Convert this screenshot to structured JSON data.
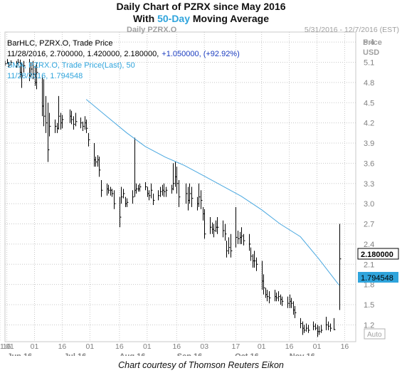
{
  "header": {
    "line1": "Daily Chart of PZRX since May 2016",
    "line2_prefix": "With ",
    "line2_accent": "50-Day",
    "line2_suffix": " Moving Average"
  },
  "chart_header": {
    "symbol_label": "Daily PZRX.O",
    "date_range": "5/31/2016 - 12/7/2016 (EST)",
    "axis_title_1": "Price",
    "axis_title_2": "USD"
  },
  "legend": {
    "line1": "BarHLC, PZRX.O, Trade Price",
    "line2_values": "11/28/2016, 2.700000, 1.420000, 2.180000,",
    "line2_change": "+1.050000, (+92.92%)",
    "line3": "SMA, PZRX.O, Trade Price(Last),  50",
    "line4": "11/28/2016, 1.794548"
  },
  "price_tag": "2.180000",
  "sma_tag": "1.794548",
  "auto_label": "Auto",
  "caption": "Chart courtesy of Thomson Reuters Eikon",
  "colors": {
    "accent": "#2fa4dc",
    "sma_line": "#4aa8e0",
    "bars": "#000000",
    "grid": "#c8c8c8",
    "axis_text": "#808080"
  },
  "chart_data": {
    "type": "line",
    "y_axis": {
      "ticks": [
        1.2,
        1.5,
        1.8,
        2.1,
        2.4,
        2.7,
        3,
        3.3,
        3.6,
        3.9,
        4.2,
        4.5,
        4.8,
        5.1,
        5.4
      ],
      "ylim": [
        0.95,
        5.55
      ],
      "position": "right"
    },
    "x_axis": {
      "day_ticks": [
        "01",
        "16",
        "01",
        "16",
        "01",
        "16",
        "01",
        "16",
        "03",
        "17",
        "01",
        "16",
        "01",
        "16",
        "01"
      ],
      "month_labels": [
        "Jun 16",
        "Jul 16",
        "Aug 16",
        "Sep 16",
        "Oct 16",
        "Nov 16"
      ],
      "start": "2016-05-31",
      "end": "2016-12-07"
    },
    "grid": true,
    "series": [
      {
        "kind": "ohlc",
        "bars": [
          {
            "date": "2016-05-31",
            "h": 5.12,
            "l": 5.05,
            "c": 5.08
          },
          {
            "date": "2016-06-01",
            "h": 5.15,
            "l": 5.08,
            "c": 5.1
          },
          {
            "date": "2016-06-02",
            "h": 5.1,
            "l": 5.02,
            "c": 5.06
          },
          {
            "date": "2016-06-03",
            "h": 5.13,
            "l": 5.05,
            "c": 5.1
          },
          {
            "date": "2016-06-06",
            "h": 5.12,
            "l": 5.02,
            "c": 5.08
          },
          {
            "date": "2016-06-07",
            "h": 5.15,
            "l": 5.05,
            "c": 5.1
          },
          {
            "date": "2016-06-08",
            "h": 5.14,
            "l": 4.88,
            "c": 4.95
          },
          {
            "date": "2016-06-09",
            "h": 5.1,
            "l": 4.72,
            "c": 4.9
          },
          {
            "date": "2016-06-10",
            "h": 5.12,
            "l": 4.95,
            "c": 5.05
          },
          {
            "date": "2016-06-13",
            "h": 5.15,
            "l": 4.82,
            "c": 4.9
          },
          {
            "date": "2016-06-14",
            "h": 5.1,
            "l": 4.88,
            "c": 5.0
          },
          {
            "date": "2016-06-15",
            "h": 5.12,
            "l": 4.85,
            "c": 4.92
          },
          {
            "date": "2016-06-16",
            "h": 5.05,
            "l": 4.75,
            "c": 4.8
          },
          {
            "date": "2016-06-17",
            "h": 5.1,
            "l": 4.7,
            "c": 4.95
          },
          {
            "date": "2016-06-20",
            "h": 4.9,
            "l": 4.3,
            "c": 4.45
          },
          {
            "date": "2016-06-21",
            "h": 4.85,
            "l": 4.15,
            "c": 4.3
          },
          {
            "date": "2016-06-22",
            "h": 4.6,
            "l": 4.05,
            "c": 4.2
          },
          {
            "date": "2016-06-23",
            "h": 4.5,
            "l": 3.62,
            "c": 3.8
          },
          {
            "date": "2016-06-24",
            "h": 4.35,
            "l": 4.0,
            "c": 4.15
          },
          {
            "date": "2016-06-27",
            "h": 4.25,
            "l": 4.05,
            "c": 4.15
          },
          {
            "date": "2016-06-28",
            "h": 4.2,
            "l": 4.05,
            "c": 4.12
          },
          {
            "date": "2016-06-29",
            "h": 4.6,
            "l": 4.1,
            "c": 4.3
          },
          {
            "date": "2016-06-30",
            "h": 4.35,
            "l": 4.1,
            "c": 4.2
          },
          {
            "date": "2016-07-01",
            "h": 4.32,
            "l": 4.12,
            "c": 4.25
          },
          {
            "date": "2016-07-05",
            "h": 4.4,
            "l": 4.2,
            "c": 4.3
          },
          {
            "date": "2016-07-06",
            "h": 4.38,
            "l": 4.18,
            "c": 4.25
          },
          {
            "date": "2016-07-07",
            "h": 4.3,
            "l": 4.1,
            "c": 4.18
          },
          {
            "date": "2016-07-08",
            "h": 4.35,
            "l": 4.15,
            "c": 4.22
          },
          {
            "date": "2016-07-11",
            "h": 4.28,
            "l": 4.12,
            "c": 4.2
          },
          {
            "date": "2016-07-12",
            "h": 4.22,
            "l": 4.08,
            "c": 4.15
          },
          {
            "date": "2016-07-13",
            "h": 4.3,
            "l": 4.1,
            "c": 4.2
          },
          {
            "date": "2016-07-14",
            "h": 4.25,
            "l": 4.05,
            "c": 4.12
          },
          {
            "date": "2016-07-15",
            "h": 4.05,
            "l": 3.85,
            "c": 3.95
          },
          {
            "date": "2016-07-18",
            "h": 3.9,
            "l": 3.55,
            "c": 3.65
          },
          {
            "date": "2016-07-19",
            "h": 3.7,
            "l": 3.55,
            "c": 3.62
          },
          {
            "date": "2016-07-20",
            "h": 3.72,
            "l": 3.55,
            "c": 3.65
          },
          {
            "date": "2016-07-21",
            "h": 3.7,
            "l": 3.4,
            "c": 3.5
          },
          {
            "date": "2016-07-22",
            "h": 3.35,
            "l": 3.1,
            "c": 3.2
          },
          {
            "date": "2016-07-25",
            "h": 3.3,
            "l": 3.12,
            "c": 3.22
          },
          {
            "date": "2016-07-26",
            "h": 3.28,
            "l": 3.15,
            "c": 3.2
          },
          {
            "date": "2016-07-27",
            "h": 3.25,
            "l": 3.12,
            "c": 3.2
          },
          {
            "date": "2016-07-28",
            "h": 3.22,
            "l": 3.1,
            "c": 3.15
          },
          {
            "date": "2016-07-29",
            "h": 3.2,
            "l": 2.92,
            "c": 3.0
          },
          {
            "date": "2016-08-01",
            "h": 3.1,
            "l": 2.65,
            "c": 2.8
          },
          {
            "date": "2016-08-02",
            "h": 3.25,
            "l": 3.0,
            "c": 3.1
          },
          {
            "date": "2016-08-03",
            "h": 3.22,
            "l": 3.08,
            "c": 3.15
          },
          {
            "date": "2016-08-04",
            "h": 3.1,
            "l": 2.95,
            "c": 3.0
          },
          {
            "date": "2016-08-05",
            "h": 3.08,
            "l": 2.95,
            "c": 3.02
          },
          {
            "date": "2016-08-08",
            "h": 3.2,
            "l": 3.0,
            "c": 3.1
          },
          {
            "date": "2016-08-09",
            "h": 3.98,
            "l": 3.1,
            "c": 3.2
          },
          {
            "date": "2016-08-10",
            "h": 3.3,
            "l": 3.15,
            "c": 3.22
          },
          {
            "date": "2016-08-11",
            "h": 3.28,
            "l": 3.18,
            "c": 3.22
          },
          {
            "date": "2016-08-12",
            "h": 3.3,
            "l": 3.18,
            "c": 3.25
          },
          {
            "date": "2016-08-15",
            "h": 3.32,
            "l": 3.2,
            "c": 3.25
          },
          {
            "date": "2016-08-16",
            "h": 3.25,
            "l": 3.1,
            "c": 3.15
          },
          {
            "date": "2016-08-17",
            "h": 3.2,
            "l": 3.05,
            "c": 3.12
          },
          {
            "date": "2016-08-18",
            "h": 3.3,
            "l": 3.08,
            "c": 3.2
          },
          {
            "date": "2016-08-19",
            "h": 3.15,
            "l": 2.98,
            "c": 3.05
          },
          {
            "date": "2016-08-22",
            "h": 3.2,
            "l": 3.05,
            "c": 3.12
          },
          {
            "date": "2016-08-23",
            "h": 3.25,
            "l": 3.1,
            "c": 3.18
          },
          {
            "date": "2016-08-24",
            "h": 3.28,
            "l": 3.12,
            "c": 3.2
          },
          {
            "date": "2016-08-25",
            "h": 3.3,
            "l": 3.1,
            "c": 3.18
          },
          {
            "date": "2016-08-26",
            "h": 3.25,
            "l": 3.1,
            "c": 3.2
          },
          {
            "date": "2016-08-29",
            "h": 3.28,
            "l": 3.15,
            "c": 3.22
          },
          {
            "date": "2016-08-30",
            "h": 3.6,
            "l": 3.2,
            "c": 3.3
          },
          {
            "date": "2016-08-31",
            "h": 3.62,
            "l": 3.25,
            "c": 3.4
          },
          {
            "date": "2016-09-01",
            "h": 3.55,
            "l": 3.15,
            "c": 3.3
          },
          {
            "date": "2016-09-02",
            "h": 3.35,
            "l": 2.95,
            "c": 3.1
          },
          {
            "date": "2016-09-06",
            "h": 3.3,
            "l": 3.0,
            "c": 3.15
          },
          {
            "date": "2016-09-07",
            "h": 3.25,
            "l": 2.9,
            "c": 3.05
          },
          {
            "date": "2016-09-08",
            "h": 3.3,
            "l": 3.0,
            "c": 3.15
          },
          {
            "date": "2016-09-09",
            "h": 3.25,
            "l": 2.95,
            "c": 3.08
          },
          {
            "date": "2016-09-12",
            "h": 3.1,
            "l": 2.9,
            "c": 3.0
          },
          {
            "date": "2016-09-13",
            "h": 3.3,
            "l": 2.95,
            "c": 3.1
          },
          {
            "date": "2016-09-14",
            "h": 3.2,
            "l": 2.92,
            "c": 3.05
          },
          {
            "date": "2016-09-15",
            "h": 2.95,
            "l": 2.75,
            "c": 2.85
          },
          {
            "date": "2016-09-16",
            "h": 2.92,
            "l": 2.48,
            "c": 2.55
          },
          {
            "date": "2016-09-19",
            "h": 2.8,
            "l": 2.55,
            "c": 2.65
          },
          {
            "date": "2016-09-20",
            "h": 2.72,
            "l": 2.55,
            "c": 2.62
          },
          {
            "date": "2016-09-21",
            "h": 2.7,
            "l": 2.5,
            "c": 2.6
          },
          {
            "date": "2016-09-22",
            "h": 2.75,
            "l": 2.58,
            "c": 2.65
          },
          {
            "date": "2016-09-23",
            "h": 2.8,
            "l": 2.55,
            "c": 2.65
          },
          {
            "date": "2016-09-26",
            "h": 2.75,
            "l": 2.5,
            "c": 2.6
          },
          {
            "date": "2016-09-27",
            "h": 2.7,
            "l": 2.45,
            "c": 2.55
          },
          {
            "date": "2016-09-28",
            "h": 2.45,
            "l": 2.2,
            "c": 2.3
          },
          {
            "date": "2016-09-29",
            "h": 2.5,
            "l": 2.25,
            "c": 2.35
          },
          {
            "date": "2016-09-30",
            "h": 2.55,
            "l": 2.2,
            "c": 2.3
          },
          {
            "date": "2016-10-03",
            "h": 2.95,
            "l": 2.35,
            "c": 2.5
          },
          {
            "date": "2016-10-04",
            "h": 2.6,
            "l": 2.4,
            "c": 2.48
          },
          {
            "date": "2016-10-05",
            "h": 2.58,
            "l": 2.4,
            "c": 2.5
          },
          {
            "date": "2016-10-06",
            "h": 2.65,
            "l": 2.4,
            "c": 2.52
          },
          {
            "date": "2016-10-07",
            "h": 2.55,
            "l": 2.38,
            "c": 2.45
          },
          {
            "date": "2016-10-10",
            "h": 2.55,
            "l": 2.3,
            "c": 2.4
          },
          {
            "date": "2016-10-11",
            "h": 2.35,
            "l": 2.15,
            "c": 2.22
          },
          {
            "date": "2016-10-12",
            "h": 2.25,
            "l": 2.05,
            "c": 2.15
          },
          {
            "date": "2016-10-13",
            "h": 2.3,
            "l": 2.05,
            "c": 2.15
          },
          {
            "date": "2016-10-14",
            "h": 2.2,
            "l": 2.0,
            "c": 2.1
          },
          {
            "date": "2016-10-17",
            "h": 2.15,
            "l": 1.72,
            "c": 1.85
          },
          {
            "date": "2016-10-18",
            "h": 1.95,
            "l": 1.65,
            "c": 1.75
          },
          {
            "date": "2016-10-19",
            "h": 1.75,
            "l": 1.6,
            "c": 1.65
          },
          {
            "date": "2016-10-20",
            "h": 1.72,
            "l": 1.55,
            "c": 1.62
          },
          {
            "date": "2016-10-21",
            "h": 1.7,
            "l": 1.52,
            "c": 1.6
          },
          {
            "date": "2016-10-24",
            "h": 1.72,
            "l": 1.55,
            "c": 1.62
          },
          {
            "date": "2016-10-25",
            "h": 1.68,
            "l": 1.55,
            "c": 1.6
          },
          {
            "date": "2016-10-26",
            "h": 1.7,
            "l": 1.55,
            "c": 1.62
          },
          {
            "date": "2016-10-27",
            "h": 1.65,
            "l": 1.5,
            "c": 1.58
          },
          {
            "date": "2016-10-28",
            "h": 1.62,
            "l": 1.48,
            "c": 1.55
          },
          {
            "date": "2016-10-31",
            "h": 1.62,
            "l": 1.45,
            "c": 1.52
          },
          {
            "date": "2016-11-01",
            "h": 1.65,
            "l": 1.45,
            "c": 1.55
          },
          {
            "date": "2016-11-02",
            "h": 1.6,
            "l": 1.45,
            "c": 1.52
          },
          {
            "date": "2016-11-03",
            "h": 1.55,
            "l": 1.35,
            "c": 1.42
          },
          {
            "date": "2016-11-04",
            "h": 1.48,
            "l": 1.3,
            "c": 1.38
          },
          {
            "date": "2016-11-07",
            "h": 1.3,
            "l": 1.15,
            "c": 1.22
          },
          {
            "date": "2016-11-08",
            "h": 1.25,
            "l": 1.05,
            "c": 1.15
          },
          {
            "date": "2016-11-09",
            "h": 1.2,
            "l": 1.08,
            "c": 1.12
          },
          {
            "date": "2016-11-10",
            "h": 1.22,
            "l": 1.1,
            "c": 1.15
          },
          {
            "date": "2016-11-11",
            "h": 1.2,
            "l": 1.08,
            "c": 1.12
          },
          {
            "date": "2016-11-14",
            "h": 1.25,
            "l": 1.12,
            "c": 1.18
          },
          {
            "date": "2016-11-15",
            "h": 1.22,
            "l": 1.12,
            "c": 1.15
          },
          {
            "date": "2016-11-16",
            "h": 1.2,
            "l": 1.02,
            "c": 1.1
          },
          {
            "date": "2016-11-17",
            "h": 1.18,
            "l": 1.05,
            "c": 1.1
          },
          {
            "date": "2016-11-18",
            "h": 1.2,
            "l": 1.08,
            "c": 1.12
          },
          {
            "date": "2016-11-21",
            "h": 1.32,
            "l": 1.12,
            "c": 1.2
          },
          {
            "date": "2016-11-22",
            "h": 1.25,
            "l": 1.12,
            "c": 1.18
          },
          {
            "date": "2016-11-23",
            "h": 1.22,
            "l": 1.1,
            "c": 1.15
          },
          {
            "date": "2016-11-25",
            "h": 1.3,
            "l": 1.12,
            "c": 1.13
          },
          {
            "date": "2016-11-28",
            "h": 2.7,
            "l": 1.42,
            "c": 2.18
          }
        ]
      },
      {
        "kind": "line",
        "name": "SMA, PZRX.O, Trade Price(Last),  50",
        "points": [
          {
            "date": "2016-07-14",
            "y": 4.55
          },
          {
            "date": "2016-07-25",
            "y": 4.3
          },
          {
            "date": "2016-08-05",
            "y": 4.05
          },
          {
            "date": "2016-08-15",
            "y": 3.85
          },
          {
            "date": "2016-08-26",
            "y": 3.69
          },
          {
            "date": "2016-09-05",
            "y": 3.57
          },
          {
            "date": "2016-09-16",
            "y": 3.41
          },
          {
            "date": "2016-09-26",
            "y": 3.26
          },
          {
            "date": "2016-10-06",
            "y": 3.11
          },
          {
            "date": "2016-10-17",
            "y": 2.91
          },
          {
            "date": "2016-10-27",
            "y": 2.7
          },
          {
            "date": "2016-11-07",
            "y": 2.51
          },
          {
            "date": "2016-11-17",
            "y": 2.18
          },
          {
            "date": "2016-11-28",
            "y": 1.79
          }
        ]
      }
    ]
  }
}
